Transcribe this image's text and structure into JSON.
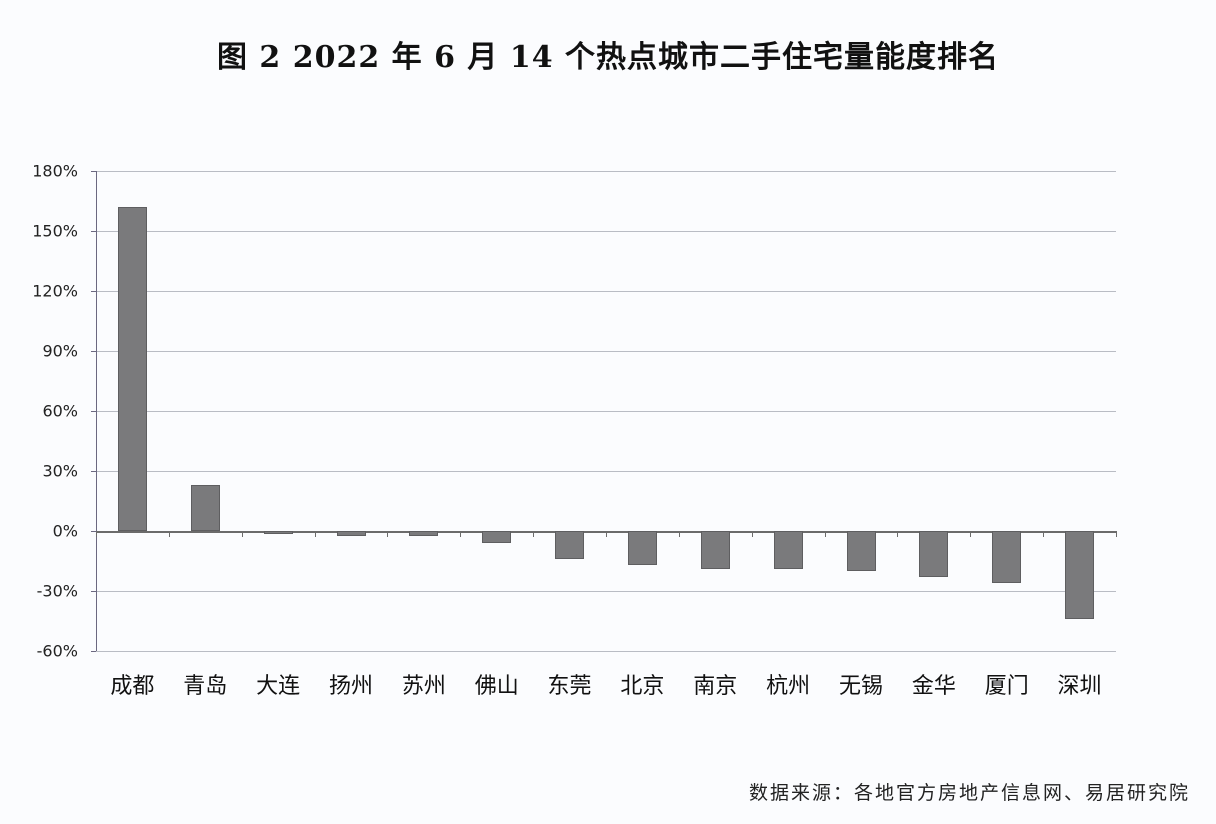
{
  "title": "图 2   2022 年 6 月 14 个热点城市二手住宅量能度排名",
  "source": "数据来源：各地官方房地产信息网、易居研究院",
  "chart_data": {
    "type": "bar",
    "title": "图 2   2022 年 6 月 14 个热点城市二手住宅量能度排名",
    "xlabel": "",
    "ylabel": "",
    "categories": [
      "成都",
      "青岛",
      "大连",
      "扬州",
      "苏州",
      "佛山",
      "东莞",
      "北京",
      "南京",
      "杭州",
      "无锡",
      "金华",
      "厦门",
      "深圳"
    ],
    "values": [
      162,
      23,
      -1.5,
      -2.5,
      -2.5,
      -6,
      -14,
      -17,
      -19,
      -19,
      -20,
      -23,
      -26,
      -44
    ],
    "unit": "%",
    "ylim": [
      -60,
      180
    ],
    "yticks": [
      180,
      150,
      120,
      90,
      60,
      30,
      0,
      -30,
      -60
    ],
    "ytick_labels": [
      "180%",
      "150%",
      "120%",
      "90%",
      "60%",
      "30%",
      "0%",
      "-30%",
      "-60%"
    ],
    "grid": true,
    "legend": null,
    "bar_color": "#7a7a7c",
    "annotation": "数据来源：各地官方房地产信息网、易居研究院"
  }
}
